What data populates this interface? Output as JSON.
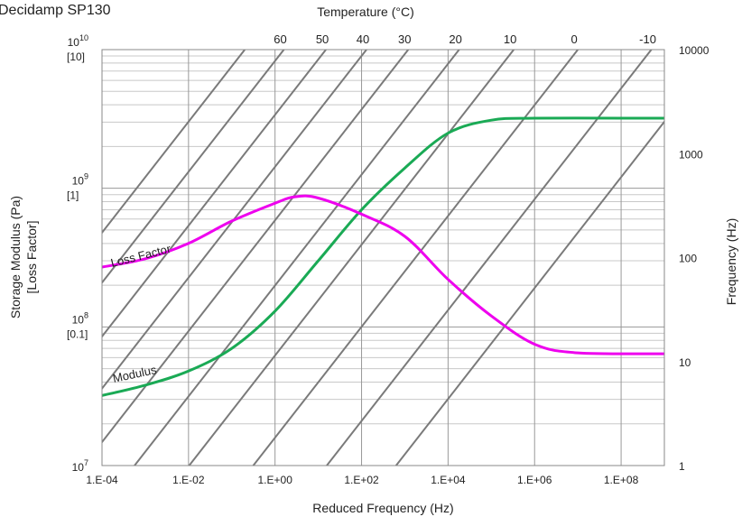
{
  "chart_data": {
    "type": "line",
    "title": "Decidamp SP130",
    "xlabel": "Reduced Frequency (Hz)",
    "ylabel_left": "Storage Modulus (Pa)",
    "ylabel_left_secondary": "[Loss Factor]",
    "ylabel_right": "Frequency (Hz)",
    "xlabel_top": "Temperature (°C)",
    "x_scale": "log",
    "y_scale": "log",
    "xlim": [
      0.0001,
      1000000000
    ],
    "ylim": [
      10000000,
      10000000000
    ],
    "ylim_right": [
      1,
      10000
    ],
    "grid": true,
    "x_ticks": [
      "1.E-04",
      "1.E-02",
      "1.E+00",
      "1.E+02",
      "1.E+04",
      "1.E+06",
      "1.E+08"
    ],
    "y_ticks_left": [
      {
        "base": "10",
        "exp": "7",
        "bracket": ""
      },
      {
        "base": "10",
        "exp": "8",
        "bracket": "[0.1]"
      },
      {
        "base": "10",
        "exp": "9",
        "bracket": "[1]"
      },
      {
        "base": "10",
        "exp": "10",
        "bracket": "[10]"
      }
    ],
    "y_ticks_right": [
      "1",
      "10",
      "100",
      "1000",
      "10000"
    ],
    "temperature_lines": [
      {
        "label": "60",
        "x_at_top_hz": 1.6
      },
      {
        "label": "50",
        "x_at_top_hz": 15
      },
      {
        "label": "40",
        "x_at_top_hz": 130
      },
      {
        "label": "30",
        "x_at_top_hz": 1200
      },
      {
        "label": "20",
        "x_at_top_hz": 18000
      },
      {
        "label": "10",
        "x_at_top_hz": 330000
      },
      {
        "label": "0",
        "x_at_top_hz": 10000000
      },
      {
        "label": "-10",
        "x_at_top_hz": 500000000
      }
    ],
    "extra_unlabeled_lines_x_at_top_hz": [
      0.2,
      20000000000
    ],
    "series": [
      {
        "name": "Modulus",
        "color": "#1aaa55",
        "points": [
          [
            0.0001,
            32000000
          ],
          [
            0.001,
            38000000
          ],
          [
            0.01,
            48000000
          ],
          [
            0.1,
            70000000
          ],
          [
            1,
            130000000
          ],
          [
            10,
            300000000
          ],
          [
            100,
            700000000
          ],
          [
            1000,
            1400000000
          ],
          [
            10000,
            2500000000
          ],
          [
            100000,
            3100000000
          ],
          [
            1000000,
            3200000000
          ],
          [
            100000000,
            3200000000
          ],
          [
            1000000000,
            3200000000
          ]
        ]
      },
      {
        "name": "Loss Factor",
        "color": "#ee00ee",
        "points": [
          [
            0.0001,
            0.27
          ],
          [
            0.001,
            0.31
          ],
          [
            0.01,
            0.4
          ],
          [
            0.1,
            0.58
          ],
          [
            1,
            0.78
          ],
          [
            3,
            0.87
          ],
          [
            10,
            0.85
          ],
          [
            100,
            0.65
          ],
          [
            1000,
            0.45
          ],
          [
            10000,
            0.22
          ],
          [
            100000,
            0.12
          ],
          [
            1000000,
            0.075
          ],
          [
            10000000,
            0.065
          ],
          [
            1000000000,
            0.064
          ]
        ]
      }
    ]
  }
}
